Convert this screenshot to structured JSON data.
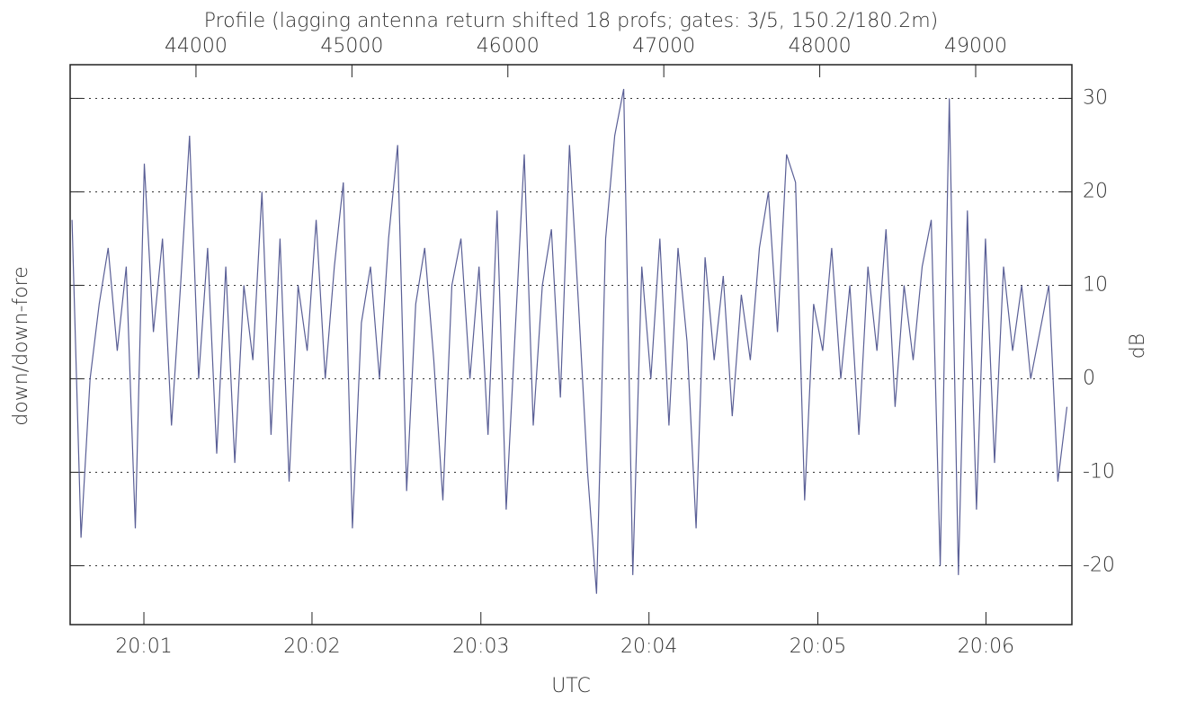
{
  "chart_data": {
    "type": "line",
    "title": "Profile (lagging antenna return shifted 18 profs; gates: 3/5, 150.2/180.2m)",
    "xlabel": "UTC",
    "ylabel": "down/down-fore",
    "ylabel_right": "dB",
    "color": "#5a5f96",
    "grid": true,
    "xlim": [
      43193,
      49617
    ],
    "xticks": [
      44000,
      45000,
      46000,
      47000,
      48000,
      49000
    ],
    "x2ticks": [
      {
        "value": 43666,
        "label": "20:01"
      },
      {
        "value": 44744,
        "label": "20:02"
      },
      {
        "value": 45827,
        "label": "20:03"
      },
      {
        "value": 46905,
        "label": "20:04"
      },
      {
        "value": 47988,
        "label": "20:05"
      },
      {
        "value": 49066,
        "label": "20:06"
      }
    ],
    "ylim": [
      -26.3,
      33.6
    ],
    "yticks": [
      -20,
      -10,
      0,
      10,
      20,
      30
    ],
    "x": [
      43205,
      43263,
      43321,
      43379,
      43437,
      43495,
      43553,
      43611,
      43669,
      43727,
      43785,
      43843,
      43901,
      43959,
      44017,
      44075,
      44133,
      44191,
      44249,
      44307,
      44365,
      44423,
      44481,
      44539,
      44597,
      44655,
      44713,
      44771,
      44829,
      44887,
      44945,
      45003,
      45061,
      45119,
      45177,
      45235,
      45293,
      45351,
      45409,
      45467,
      45525,
      45583,
      45641,
      45699,
      45757,
      45815,
      45873,
      45931,
      45989,
      46047,
      46105,
      46163,
      46221,
      46279,
      46337,
      46395,
      46453,
      46511,
      46569,
      46627,
      46685,
      46743,
      46801,
      46859,
      46917,
      46975,
      47033,
      47091,
      47149,
      47207,
      47265,
      47323,
      47381,
      47439,
      47497,
      47555,
      47613,
      47671,
      47729,
      47787,
      47845,
      47903,
      47961,
      48019,
      48077,
      48135,
      48193,
      48251,
      48309,
      48367,
      48425,
      48483,
      48541,
      48599,
      48657,
      48715,
      48773,
      48831,
      48889,
      48947,
      49005,
      49063,
      49121,
      49179,
      49237,
      49295,
      49353,
      49411,
      49469,
      49527,
      49585
    ],
    "values": [
      17,
      -17,
      0,
      8,
      14,
      3,
      12,
      -16,
      23,
      5,
      15,
      -5,
      10,
      26,
      0,
      14,
      -8,
      12,
      -9,
      10,
      2,
      20,
      -6,
      15,
      -11,
      10,
      3,
      17,
      0,
      12,
      21,
      -16,
      6,
      12,
      0,
      15,
      25,
      -12,
      8,
      14,
      2,
      -13,
      10,
      15,
      0,
      12,
      -6,
      18,
      -14,
      5,
      24,
      -5,
      10,
      16,
      -2,
      25,
      8,
      -10,
      -23,
      15,
      26,
      31,
      -21,
      12,
      0,
      15,
      -5,
      14,
      4,
      -16,
      13,
      2,
      11,
      -4,
      9,
      2,
      14,
      20,
      5,
      24,
      21,
      -13,
      8,
      3,
      14,
      0,
      10,
      -6,
      12,
      3,
      16,
      -3,
      10,
      2,
      12,
      17,
      -20,
      30,
      -21,
      18,
      -14,
      15,
      -9,
      12,
      3,
      10,
      0,
      5,
      10,
      -11,
      -3
    ]
  }
}
